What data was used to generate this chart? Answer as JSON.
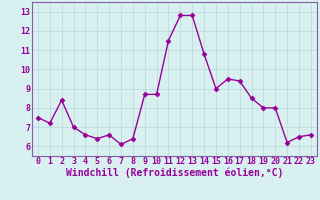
{
  "x": [
    0,
    1,
    2,
    3,
    4,
    5,
    6,
    7,
    8,
    9,
    10,
    11,
    12,
    13,
    14,
    15,
    16,
    17,
    18,
    19,
    20,
    21,
    22,
    23
  ],
  "y": [
    7.5,
    7.2,
    8.4,
    7.0,
    6.6,
    6.4,
    6.6,
    6.1,
    6.4,
    8.7,
    8.7,
    11.5,
    12.8,
    12.8,
    10.8,
    9.0,
    9.5,
    9.4,
    8.5,
    8.0,
    8.0,
    6.2,
    6.5,
    6.6
  ],
  "line_color": "#990099",
  "marker": "D",
  "marker_size": 2.5,
  "line_width": 1.0,
  "xlabel": "Windchill (Refroidissement éolien,°C)",
  "xlabel_fontsize": 7.0,
  "ylim": [
    5.5,
    13.5
  ],
  "yticks": [
    6,
    7,
    8,
    9,
    10,
    11,
    12,
    13
  ],
  "xticks": [
    0,
    1,
    2,
    3,
    4,
    5,
    6,
    7,
    8,
    9,
    10,
    11,
    12,
    13,
    14,
    15,
    16,
    17,
    18,
    19,
    20,
    21,
    22,
    23
  ],
  "tick_fontsize": 6.0,
  "bg_color": "#d8f0f0",
  "grid_color": "#b8d8d8",
  "spine_color": "#8060a0"
}
